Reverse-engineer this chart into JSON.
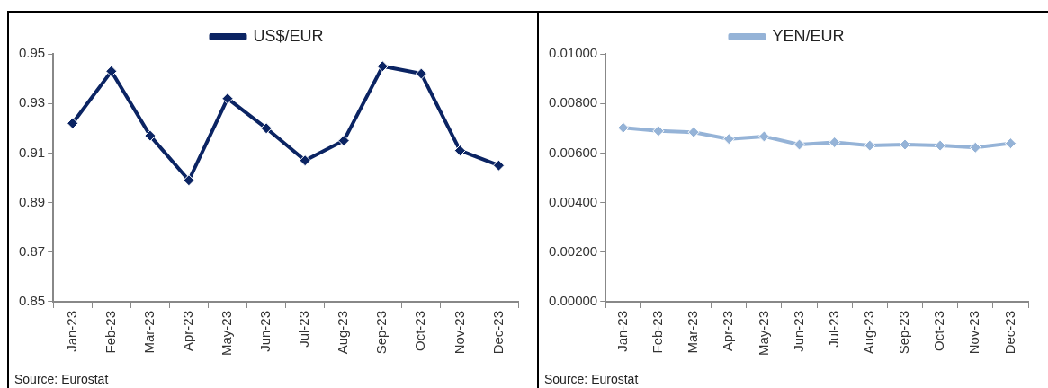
{
  "chart_data": [
    {
      "type": "line",
      "categories": [
        "Jan-23",
        "Feb-23",
        "Mar-23",
        "Apr-23",
        "May-23",
        "Jun-23",
        "Jul-23",
        "Aug-23",
        "Sep-23",
        "Oct-23",
        "Nov-23",
        "Dec-23"
      ],
      "series": [
        {
          "name": "US$/EUR",
          "color": "#0b2463",
          "values": [
            0.922,
            0.943,
            0.917,
            0.899,
            0.932,
            0.92,
            0.907,
            0.915,
            0.945,
            0.942,
            0.911,
            0.905
          ]
        }
      ],
      "ylim": [
        0.85,
        0.95
      ],
      "yticks": [
        0.85,
        0.87,
        0.89,
        0.91,
        0.93,
        0.95
      ],
      "grid": false,
      "legend": "top",
      "marker": "diamond",
      "line_style": "solid",
      "annotations": [
        "Source: Eurostat"
      ]
    },
    {
      "type": "line",
      "categories": [
        "Jan-23",
        "Feb-23",
        "Mar-23",
        "Apr-23",
        "May-23",
        "Jun-23",
        "Jul-23",
        "Aug-23",
        "Sep-23",
        "Oct-23",
        "Nov-23",
        "Dec-23"
      ],
      "series": [
        {
          "name": "YEN/EUR",
          "color": "#95b3d7",
          "values": [
            0.00702,
            0.00689,
            0.00684,
            0.00657,
            0.00667,
            0.00634,
            0.00643,
            0.0063,
            0.00634,
            0.0063,
            0.00622,
            0.00639
          ]
        }
      ],
      "ylim": [
        0,
        0.01
      ],
      "yticks": [
        {
          "value": 0,
          "label": "0.00000"
        },
        {
          "value": 0.002,
          "label": "0.00200"
        },
        {
          "value": 0.004,
          "label": "0.00400"
        },
        {
          "value": 0.006,
          "label": "0.00600"
        },
        {
          "value": 0.008,
          "label": "0.00800"
        },
        {
          "value": 0.01,
          "label": "0.01000"
        }
      ],
      "grid": false,
      "legend": "top",
      "marker": "diamond",
      "line_style": "solid",
      "annotations": [
        "Source: Eurostat"
      ]
    }
  ]
}
